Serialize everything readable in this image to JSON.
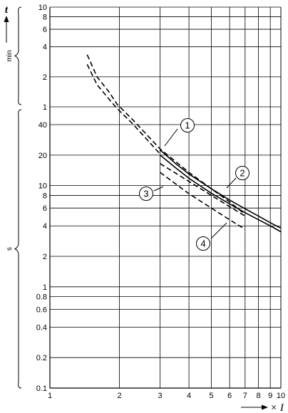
{
  "chart_data": {
    "type": "line",
    "x_scale": "log",
    "y_scale": "log",
    "xlim": [
      1,
      10
    ],
    "y_axis_label": "t",
    "x_axis_label": "× I",
    "y_unit_upper": "min",
    "y_unit_lower": "s",
    "grid": true,
    "x_ticks": [
      {
        "v": 1,
        "label": "1"
      },
      {
        "v": 2,
        "label": "2"
      },
      {
        "v": 3,
        "label": "3"
      },
      {
        "v": 4,
        "label": "4"
      },
      {
        "v": 5,
        "label": "5"
      },
      {
        "v": 6,
        "label": "6"
      },
      {
        "v": 7,
        "label": "7"
      },
      {
        "v": 8,
        "label": "8"
      },
      {
        "v": 9,
        "label": "9"
      },
      {
        "v": 10,
        "label": "10"
      }
    ],
    "y_ticks_min": [
      {
        "v": 1,
        "label": "1"
      },
      {
        "v": 2,
        "label": "2"
      },
      {
        "v": 4,
        "label": "4"
      },
      {
        "v": 6,
        "label": "6"
      },
      {
        "v": 8,
        "label": "8"
      },
      {
        "v": 10,
        "label": "10"
      }
    ],
    "y_ticks_s": [
      {
        "v": 0.1,
        "label": "0.1"
      },
      {
        "v": 0.2,
        "label": "0.2"
      },
      {
        "v": 0.4,
        "label": "0.4"
      },
      {
        "v": 0.6,
        "label": "0.6"
      },
      {
        "v": 0.8,
        "label": "0.8"
      },
      {
        "v": 1,
        "label": "1"
      },
      {
        "v": 2,
        "label": "2"
      },
      {
        "v": 4,
        "label": "4"
      },
      {
        "v": 6,
        "label": "6"
      },
      {
        "v": 8,
        "label": "8"
      },
      {
        "v": 10,
        "label": "10"
      },
      {
        "v": 20,
        "label": "20"
      },
      {
        "v": 40,
        "label": "40"
      }
    ],
    "series": [
      {
        "name": "1",
        "style": "solid",
        "points": [
          [
            3,
            22.5
          ],
          [
            3.5,
            16.5
          ],
          [
            4,
            13
          ],
          [
            5,
            9.3
          ],
          [
            6,
            7.2
          ],
          [
            7,
            5.9
          ],
          [
            8,
            5
          ],
          [
            9,
            4.3
          ],
          [
            10,
            3.8
          ]
        ]
      },
      {
        "name": "2",
        "style": "solid",
        "points": [
          [
            3,
            20
          ],
          [
            3.5,
            15
          ],
          [
            4,
            11.8
          ],
          [
            5,
            8.4
          ],
          [
            6,
            6.6
          ],
          [
            7,
            5.4
          ],
          [
            8,
            4.6
          ],
          [
            9,
            4
          ],
          [
            10,
            3.5
          ]
        ]
      },
      {
        "name": "3",
        "style": "dashed",
        "points": [
          [
            1.45,
            200
          ],
          [
            1.6,
            120
          ],
          [
            1.8,
            85
          ],
          [
            1.95,
            64
          ],
          [
            2.3,
            44
          ],
          [
            3,
            23
          ],
          [
            4,
            13.5
          ],
          [
            5,
            9.3
          ],
          [
            6,
            6.9
          ],
          [
            7,
            5.2
          ]
        ]
      },
      {
        "name": "3",
        "style": "dashed",
        "points": [
          [
            3,
            16.5
          ],
          [
            4,
            11
          ],
          [
            5,
            8
          ],
          [
            6,
            6.2
          ],
          [
            7,
            5
          ]
        ]
      },
      {
        "name": "4",
        "style": "dashed",
        "points": [
          [
            1.45,
            160
          ],
          [
            1.6,
            100
          ],
          [
            1.8,
            72
          ],
          [
            1.95,
            58
          ],
          [
            2.3,
            40
          ],
          [
            3,
            20.5
          ]
        ]
      },
      {
        "name": "4",
        "style": "dashed",
        "points": [
          [
            3,
            13.5
          ],
          [
            4,
            8.3
          ],
          [
            5,
            6
          ],
          [
            6,
            4.6
          ],
          [
            7,
            3.7
          ]
        ]
      }
    ],
    "callouts": [
      {
        "label": "1"
      },
      {
        "label": "2"
      },
      {
        "label": "3"
      },
      {
        "label": "4"
      }
    ]
  }
}
